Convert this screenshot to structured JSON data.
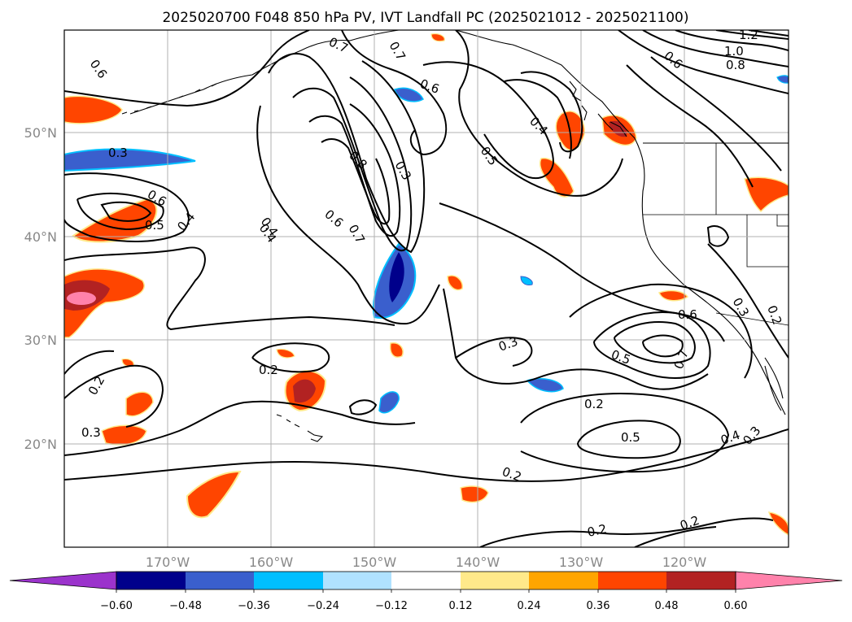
{
  "title": "2025020700 F048 850 hPa PV, IVT Landfall PC (2025021012 - 2025021100)",
  "map": {
    "lat_labels": [
      "50°N",
      "40°N",
      "30°N",
      "20°N"
    ],
    "lon_labels": [
      "170°W",
      "160°W",
      "150°W",
      "140°W",
      "130°W",
      "120°W"
    ],
    "contour_labels": [
      "0.6",
      "0.7",
      "0.7",
      "1.2",
      "1.0",
      "0.8",
      "0.6",
      "0.3",
      "0.6",
      "0.6",
      "0.5",
      "0.4",
      "0.8",
      "0.3",
      "0.4",
      "0.5",
      "0.4",
      "0.6",
      "0.7",
      "0.4",
      "0.3",
      "0.2",
      "0.3",
      "0.6",
      "0.5",
      "0.7",
      "0.3",
      "0.2",
      "0.2",
      "0.2",
      "0.5",
      "0.3",
      "0.4",
      "0.2",
      "0.2",
      "0.2"
    ],
    "colors": {
      "coastline": "#000000",
      "contour": "#000000",
      "grid": "#b0b0b0"
    }
  },
  "colorbar": {
    "tick_labels": [
      "−0.60",
      "−0.48",
      "−0.36",
      "−0.24",
      "−0.12",
      "0.12",
      "0.24",
      "0.36",
      "0.48",
      "0.60"
    ],
    "colors": [
      "#9b33cc",
      "#00008b",
      "#3a5fcd",
      "#00bfff",
      "#b0e2ff",
      "#ffffff",
      "#ffe98a",
      "#ffa500",
      "#ff4500",
      "#b22222",
      "#ff82ab"
    ],
    "extend": "both"
  }
}
